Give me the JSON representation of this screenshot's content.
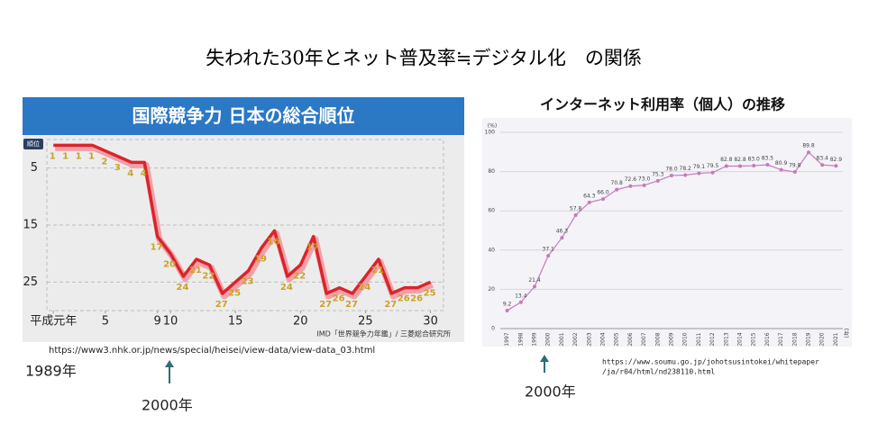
{
  "title": "失われた30年とネット普及率≒デジタル化　の関係",
  "notes": {
    "source_left": "https://www3.nhk.or.jp/news/special/heisei/view-data/view-data_03.html",
    "start_year": "1989年",
    "mark_left": "2000年",
    "source_right": [
      "https://www.soumu.go.jp/johotsusintokei/whitepaper",
      "/ja/r04/html/nd238110.html"
    ],
    "mark_right": "2000年"
  },
  "chart_data": [
    {
      "type": "line",
      "title": "国際競争力 日本の総合順位",
      "y_label": "順位",
      "source": "IMD「世界競争力年鑑」/ 三菱総合研究所",
      "x": [
        1,
        2,
        3,
        4,
        5,
        6,
        7,
        8,
        9,
        10,
        11,
        12,
        13,
        14,
        15,
        16,
        17,
        18,
        19,
        20,
        21,
        22,
        23,
        24,
        25,
        26,
        27,
        28,
        29,
        30
      ],
      "values": [
        1,
        1,
        1,
        1,
        2,
        3,
        4,
        4,
        17,
        20,
        24,
        21,
        22,
        27,
        25,
        23,
        19,
        16,
        24,
        22,
        17,
        27,
        26,
        27,
        24,
        21,
        27,
        26,
        26,
        25
      ],
      "color": "#d9252b",
      "label_color": "#c9a227",
      "xlim": [
        0.5,
        31
      ],
      "xticks": [
        {
          "value": 1,
          "label": "平成元年"
        },
        5,
        9,
        10,
        15,
        20,
        25,
        30
      ],
      "ylim": [
        30,
        0
      ],
      "yticks": [
        5,
        15,
        25
      ],
      "grid": true
    },
    {
      "type": "line",
      "title": "インターネット利用率（個人）の推移",
      "y_label": "(%)",
      "x_label": "(年)",
      "categories": [
        "1997",
        "1998",
        "1999",
        "2000",
        "2001",
        "2002",
        "2003",
        "2004",
        "2005",
        "2006",
        "2007",
        "2008",
        "2009",
        "2010",
        "2011",
        "2012",
        "2013",
        "2014",
        "2015",
        "2016",
        "2017",
        "2018",
        "2019",
        "2020",
        "2021"
      ],
      "values": [
        9.2,
        13.4,
        21.4,
        37.1,
        46.3,
        57.8,
        64.3,
        66.0,
        70.8,
        72.6,
        73.0,
        75.3,
        78.0,
        78.2,
        79.1,
        79.5,
        82.8,
        82.8,
        83.0,
        83.5,
        80.9,
        79.8,
        89.8,
        83.4,
        82.9
      ],
      "value_labels": [
        "9.2",
        "13.4",
        "21.4",
        "37.1",
        "46.3",
        "57.8",
        "64.3",
        "66.0",
        "70.8",
        "72.6",
        "73.0",
        "75.3",
        "78.0",
        "78.2",
        "79.1",
        "79.5",
        "82.8",
        "82.8",
        "83.0",
        "83.5",
        "80.9",
        "79.8",
        "89.8",
        "83.4",
        "82.9"
      ],
      "color": "#c77ab8",
      "label_color": "#444444",
      "ylim": [
        0,
        100
      ],
      "yticks": [
        0,
        20,
        40,
        60,
        80,
        100
      ],
      "grid": true
    }
  ]
}
